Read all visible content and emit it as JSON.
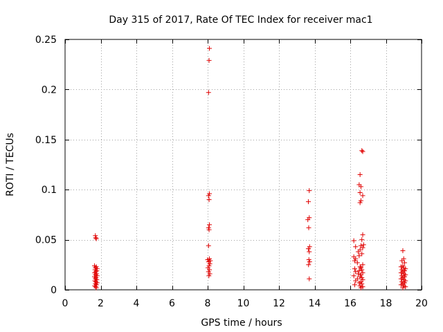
{
  "chart_data": {
    "type": "scatter",
    "title": "Day 315 of 2017, Rate Of TEC Index for receiver mac1",
    "xlabel": "GPS time / hours",
    "ylabel": "ROTI / TECUs",
    "xlim": [
      0,
      20
    ],
    "ylim": [
      0,
      0.25
    ],
    "xticks": [
      0,
      2,
      4,
      6,
      8,
      10,
      12,
      14,
      16,
      18,
      20
    ],
    "yticks": [
      0,
      0.05,
      0.1,
      0.15,
      0.2,
      0.25
    ],
    "xtick_labels": [
      "0",
      "2",
      "4",
      "6",
      "8",
      "10",
      "12",
      "14",
      "16",
      "18",
      "20"
    ],
    "ytick_labels": [
      "0",
      "0.05",
      "0.1",
      "0.15",
      "0.2",
      "0.25"
    ],
    "grid": true,
    "marker": "+",
    "color": "#e00000",
    "series": [
      {
        "name": "mac1",
        "points": [
          [
            1.7,
            0.054
          ],
          [
            1.72,
            0.052
          ],
          [
            1.75,
            0.051
          ],
          [
            1.65,
            0.024
          ],
          [
            1.75,
            0.023
          ],
          [
            1.7,
            0.022
          ],
          [
            1.8,
            0.021
          ],
          [
            1.68,
            0.02
          ],
          [
            1.78,
            0.019
          ],
          [
            1.72,
            0.018
          ],
          [
            1.66,
            0.017
          ],
          [
            1.76,
            0.016
          ],
          [
            1.7,
            0.015
          ],
          [
            1.8,
            0.014
          ],
          [
            1.65,
            0.013
          ],
          [
            1.74,
            0.012
          ],
          [
            1.7,
            0.011
          ],
          [
            1.78,
            0.01
          ],
          [
            1.67,
            0.009
          ],
          [
            1.73,
            0.008
          ],
          [
            1.8,
            0.007
          ],
          [
            1.7,
            0.006
          ],
          [
            1.76,
            0.005
          ],
          [
            1.66,
            0.004
          ],
          [
            1.72,
            0.003
          ],
          [
            1.75,
            0.002
          ],
          [
            8.1,
            0.241
          ],
          [
            8.08,
            0.229
          ],
          [
            8.05,
            0.197
          ],
          [
            8.1,
            0.096
          ],
          [
            8.05,
            0.094
          ],
          [
            8.08,
            0.09
          ],
          [
            8.1,
            0.065
          ],
          [
            8.05,
            0.062
          ],
          [
            8.08,
            0.06
          ],
          [
            8.05,
            0.044
          ],
          [
            8.1,
            0.031
          ],
          [
            8.0,
            0.03
          ],
          [
            8.15,
            0.029
          ],
          [
            8.05,
            0.028
          ],
          [
            8.12,
            0.026
          ],
          [
            8.08,
            0.024
          ],
          [
            8.02,
            0.022
          ],
          [
            8.1,
            0.02
          ],
          [
            8.05,
            0.018
          ],
          [
            8.12,
            0.016
          ],
          [
            8.07,
            0.014
          ],
          [
            13.7,
            0.099
          ],
          [
            13.65,
            0.088
          ],
          [
            13.7,
            0.072
          ],
          [
            13.62,
            0.07
          ],
          [
            13.67,
            0.062
          ],
          [
            13.72,
            0.043
          ],
          [
            13.65,
            0.041
          ],
          [
            13.7,
            0.038
          ],
          [
            13.68,
            0.03
          ],
          [
            13.72,
            0.028
          ],
          [
            13.66,
            0.025
          ],
          [
            13.7,
            0.011
          ],
          [
            16.65,
            0.139
          ],
          [
            16.7,
            0.138
          ],
          [
            16.55,
            0.115
          ],
          [
            16.5,
            0.105
          ],
          [
            16.6,
            0.103
          ],
          [
            16.55,
            0.097
          ],
          [
            16.7,
            0.094
          ],
          [
            16.6,
            0.089
          ],
          [
            16.55,
            0.087
          ],
          [
            16.7,
            0.055
          ],
          [
            16.65,
            0.05
          ],
          [
            16.2,
            0.049
          ],
          [
            16.75,
            0.045
          ],
          [
            16.6,
            0.044
          ],
          [
            16.3,
            0.043
          ],
          [
            16.7,
            0.042
          ],
          [
            16.55,
            0.04
          ],
          [
            16.45,
            0.038
          ],
          [
            16.65,
            0.036
          ],
          [
            16.5,
            0.034
          ],
          [
            16.2,
            0.033
          ],
          [
            16.3,
            0.031
          ],
          [
            16.25,
            0.029
          ],
          [
            16.4,
            0.027
          ],
          [
            16.7,
            0.025
          ],
          [
            16.55,
            0.023
          ],
          [
            16.6,
            0.022
          ],
          [
            16.25,
            0.021
          ],
          [
            16.65,
            0.02
          ],
          [
            16.5,
            0.019
          ],
          [
            16.3,
            0.018
          ],
          [
            16.7,
            0.017
          ],
          [
            16.45,
            0.016
          ],
          [
            16.6,
            0.015
          ],
          [
            16.2,
            0.014
          ],
          [
            16.55,
            0.013
          ],
          [
            16.65,
            0.012
          ],
          [
            16.4,
            0.011
          ],
          [
            16.7,
            0.01
          ],
          [
            16.3,
            0.009
          ],
          [
            16.6,
            0.008
          ],
          [
            16.5,
            0.007
          ],
          [
            16.65,
            0.006
          ],
          [
            16.25,
            0.005
          ],
          [
            16.55,
            0.004
          ],
          [
            16.7,
            0.003
          ],
          [
            16.6,
            0.002
          ],
          [
            18.95,
            0.039
          ],
          [
            19.0,
            0.031
          ],
          [
            18.9,
            0.029
          ],
          [
            19.05,
            0.027
          ],
          [
            18.95,
            0.024
          ],
          [
            18.85,
            0.023
          ],
          [
            19.0,
            0.022
          ],
          [
            19.1,
            0.021
          ],
          [
            18.9,
            0.02
          ],
          [
            19.05,
            0.019
          ],
          [
            18.95,
            0.018
          ],
          [
            18.85,
            0.017
          ],
          [
            19.0,
            0.016
          ],
          [
            19.1,
            0.015
          ],
          [
            18.9,
            0.014
          ],
          [
            19.05,
            0.013
          ],
          [
            18.95,
            0.012
          ],
          [
            18.85,
            0.011
          ],
          [
            19.0,
            0.01
          ],
          [
            19.1,
            0.009
          ],
          [
            18.9,
            0.008
          ],
          [
            19.05,
            0.007
          ],
          [
            18.95,
            0.006
          ],
          [
            18.85,
            0.005
          ],
          [
            19.0,
            0.004
          ],
          [
            19.1,
            0.003
          ],
          [
            18.95,
            0.002
          ]
        ]
      }
    ]
  }
}
